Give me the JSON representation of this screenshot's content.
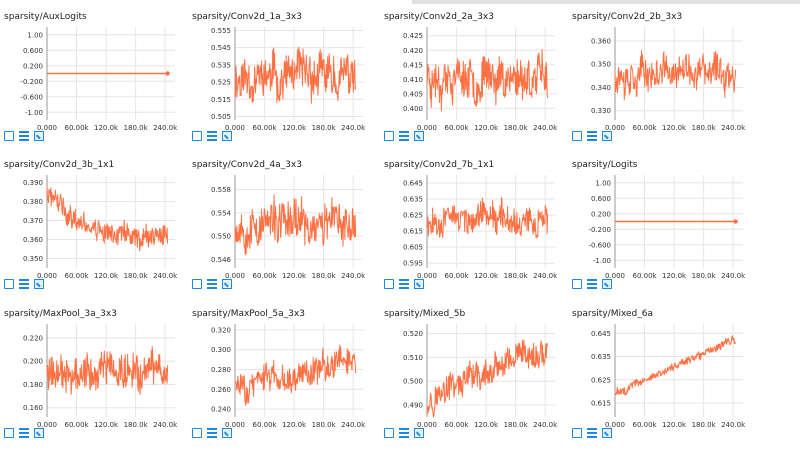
{
  "colors": {
    "series": "#ff7043",
    "accent": "#1e88e5"
  },
  "icons": {
    "expand": "fullscreen-icon",
    "lines": "data-selection-icon",
    "fit": "fit-domain-icon"
  },
  "charts": [
    {
      "title": "sparsity/AuxLogits",
      "chart_data": {
        "type": "line",
        "pattern": "flat",
        "y_range": [
          -1.2,
          1.2
        ],
        "yticks": [
          "1.00",
          "0.600",
          "0.200",
          "-0.200",
          "-0.600",
          "-1.00"
        ],
        "ytick_vals": [
          1.0,
          0.6,
          0.2,
          -0.2,
          -0.6,
          -1.0
        ],
        "xticks": [
          "0.000",
          "60.00k",
          "120.0k",
          "180.0k",
          "240.0k"
        ],
        "x_range": [
          0,
          260000
        ],
        "value_mean": 0.0,
        "noise": 0
      }
    },
    {
      "title": "sparsity/Conv2d_1a_3x3",
      "chart_data": {
        "type": "line",
        "pattern": "noisy",
        "y_range": [
          0.503,
          0.557
        ],
        "yticks": [
          "0.555",
          "0.545",
          "0.535",
          "0.525",
          "0.515",
          "0.505"
        ],
        "ytick_vals": [
          0.555,
          0.545,
          0.535,
          0.525,
          0.515,
          0.505
        ],
        "xticks": [
          "0.000",
          "60.00k",
          "120.0k",
          "180.0k",
          "240.0k"
        ],
        "x_range": [
          0,
          260000
        ],
        "value_mean": 0.528,
        "noise": 0.012,
        "seed": 11
      }
    },
    {
      "title": "sparsity/Conv2d_2a_3x3",
      "chart_data": {
        "type": "line",
        "pattern": "noisy",
        "y_range": [
          0.396,
          0.428
        ],
        "yticks": [
          "0.425",
          "0.420",
          "0.415",
          "0.410",
          "0.405",
          "0.400"
        ],
        "ytick_vals": [
          0.425,
          0.42,
          0.415,
          0.41,
          0.405,
          0.4
        ],
        "xticks": [
          "0.000",
          "60.00k",
          "120.0k",
          "180.0k",
          "240.0k"
        ],
        "x_range": [
          0,
          260000
        ],
        "value_mean": 0.411,
        "noise": 0.007,
        "seed": 23
      }
    },
    {
      "title": "sparsity/Conv2d_2b_3x3",
      "chart_data": {
        "type": "line",
        "pattern": "noisy",
        "y_range": [
          0.326,
          0.366
        ],
        "yticks": [
          "0.360",
          "0.350",
          "0.340",
          "0.330"
        ],
        "ytick_vals": [
          0.36,
          0.35,
          0.34,
          0.33
        ],
        "xticks": [
          "0.000",
          "60.00k",
          "120.0k",
          "180.0k",
          "240.0k"
        ],
        "x_range": [
          0,
          260000
        ],
        "value_mean": 0.346,
        "noise": 0.007,
        "seed": 37
      }
    },
    {
      "title": "sparsity/Conv2d_3b_1x1",
      "chart_data": {
        "type": "line",
        "pattern": "decay",
        "y_range": [
          0.345,
          0.394
        ],
        "yticks": [
          "0.390",
          "0.380",
          "0.370",
          "0.360",
          "0.350"
        ],
        "ytick_vals": [
          0.39,
          0.38,
          0.37,
          0.36,
          0.35
        ],
        "xticks": [
          "0.000",
          "60.00k",
          "120.0k",
          "180.0k",
          "240.0k"
        ],
        "x_range": [
          0,
          260000
        ],
        "value_start": 0.384,
        "value_end": 0.36,
        "noise": 0.006,
        "seed": 41
      }
    },
    {
      "title": "sparsity/Conv2d_4a_3x3",
      "chart_data": {
        "type": "line",
        "pattern": "noisy",
        "y_range": [
          0.5445,
          0.5605
        ],
        "yticks": [
          "0.558",
          "0.554",
          "0.550",
          "0.546"
        ],
        "ytick_vals": [
          0.558,
          0.554,
          0.55,
          0.546
        ],
        "xticks": [
          "0.000",
          "60.00k",
          "120.0k",
          "180.0k",
          "240.0k"
        ],
        "x_range": [
          0,
          260000
        ],
        "value_mean": 0.552,
        "noise": 0.0035,
        "seed": 53
      }
    },
    {
      "title": "sparsity/Conv2d_7b_1x1",
      "chart_data": {
        "type": "line",
        "pattern": "noisy",
        "y_range": [
          0.592,
          0.65
        ],
        "yticks": [
          "0.645",
          "0.635",
          "0.625",
          "0.615",
          "0.605",
          "0.595"
        ],
        "ytick_vals": [
          0.645,
          0.635,
          0.625,
          0.615,
          0.605,
          0.595
        ],
        "xticks": [
          "0.000",
          "60.00k",
          "120.0k",
          "180.0k",
          "240.0k"
        ],
        "x_range": [
          0,
          260000
        ],
        "value_mean": 0.623,
        "noise": 0.009,
        "seed": 67
      }
    },
    {
      "title": "sparsity/Logits",
      "chart_data": {
        "type": "line",
        "pattern": "flat",
        "y_range": [
          -1.2,
          1.2
        ],
        "yticks": [
          "1.00",
          "0.600",
          "0.200",
          "-0.200",
          "-0.600",
          "-1.00"
        ],
        "ytick_vals": [
          1.0,
          0.6,
          0.2,
          -0.2,
          -0.6,
          -1.0
        ],
        "xticks": [
          "0.000",
          "60.00k",
          "120.0k",
          "180.0k",
          "240.0k"
        ],
        "x_range": [
          0,
          260000
        ],
        "value_mean": 0.0,
        "noise": 0
      }
    },
    {
      "title": "sparsity/MaxPool_3a_3x3",
      "chart_data": {
        "type": "line",
        "pattern": "noisy",
        "y_range": [
          0.152,
          0.232
        ],
        "yticks": [
          "0.220",
          "0.200",
          "0.180",
          "0.160"
        ],
        "ytick_vals": [
          0.22,
          0.2,
          0.18,
          0.16
        ],
        "xticks": [
          "0.000",
          "60.00k",
          "120.0k",
          "180.0k",
          "240.0k"
        ],
        "x_range": [
          0,
          260000
        ],
        "value_mean": 0.192,
        "noise": 0.016,
        "seed": 79
      }
    },
    {
      "title": "sparsity/MaxPool_5a_3x3",
      "chart_data": {
        "type": "line",
        "pattern": "rise",
        "y_range": [
          0.232,
          0.326
        ],
        "yticks": [
          "0.320",
          "0.300",
          "0.280",
          "0.260",
          "0.240"
        ],
        "ytick_vals": [
          0.32,
          0.3,
          0.28,
          0.26,
          0.24
        ],
        "xticks": [
          "0.000",
          "60.00k",
          "120.0k",
          "180.0k",
          "240.0k"
        ],
        "x_range": [
          0,
          260000
        ],
        "value_start": 0.262,
        "value_end": 0.29,
        "noise": 0.014,
        "seed": 83
      }
    },
    {
      "title": "sparsity/Mixed_5b",
      "chart_data": {
        "type": "line",
        "pattern": "rise",
        "y_range": [
          0.485,
          0.524
        ],
        "yticks": [
          "0.520",
          "0.510",
          "0.500",
          "0.490"
        ],
        "ytick_vals": [
          0.52,
          0.51,
          0.5,
          0.49
        ],
        "xticks": [
          "0.000",
          "60.00k",
          "120.0k",
          "180.0k",
          "240.0k"
        ],
        "x_range": [
          0,
          260000
        ],
        "value_start": 0.493,
        "value_end": 0.512,
        "noise": 0.006,
        "seed": 97
      }
    },
    {
      "title": "sparsity/Mixed_6a",
      "chart_data": {
        "type": "line",
        "pattern": "rise",
        "y_range": [
          0.609,
          0.649
        ],
        "yticks": [
          "0.645",
          "0.635",
          "0.625",
          "0.615"
        ],
        "ytick_vals": [
          0.645,
          0.635,
          0.625,
          0.615
        ],
        "xticks": [
          "0.000",
          "60.00k",
          "120.0k",
          "180.0k",
          "240.0k"
        ],
        "x_range": [
          0,
          260000
        ],
        "value_start": 0.619,
        "value_end": 0.643,
        "noise": 0.0018,
        "seed": 101
      }
    }
  ]
}
